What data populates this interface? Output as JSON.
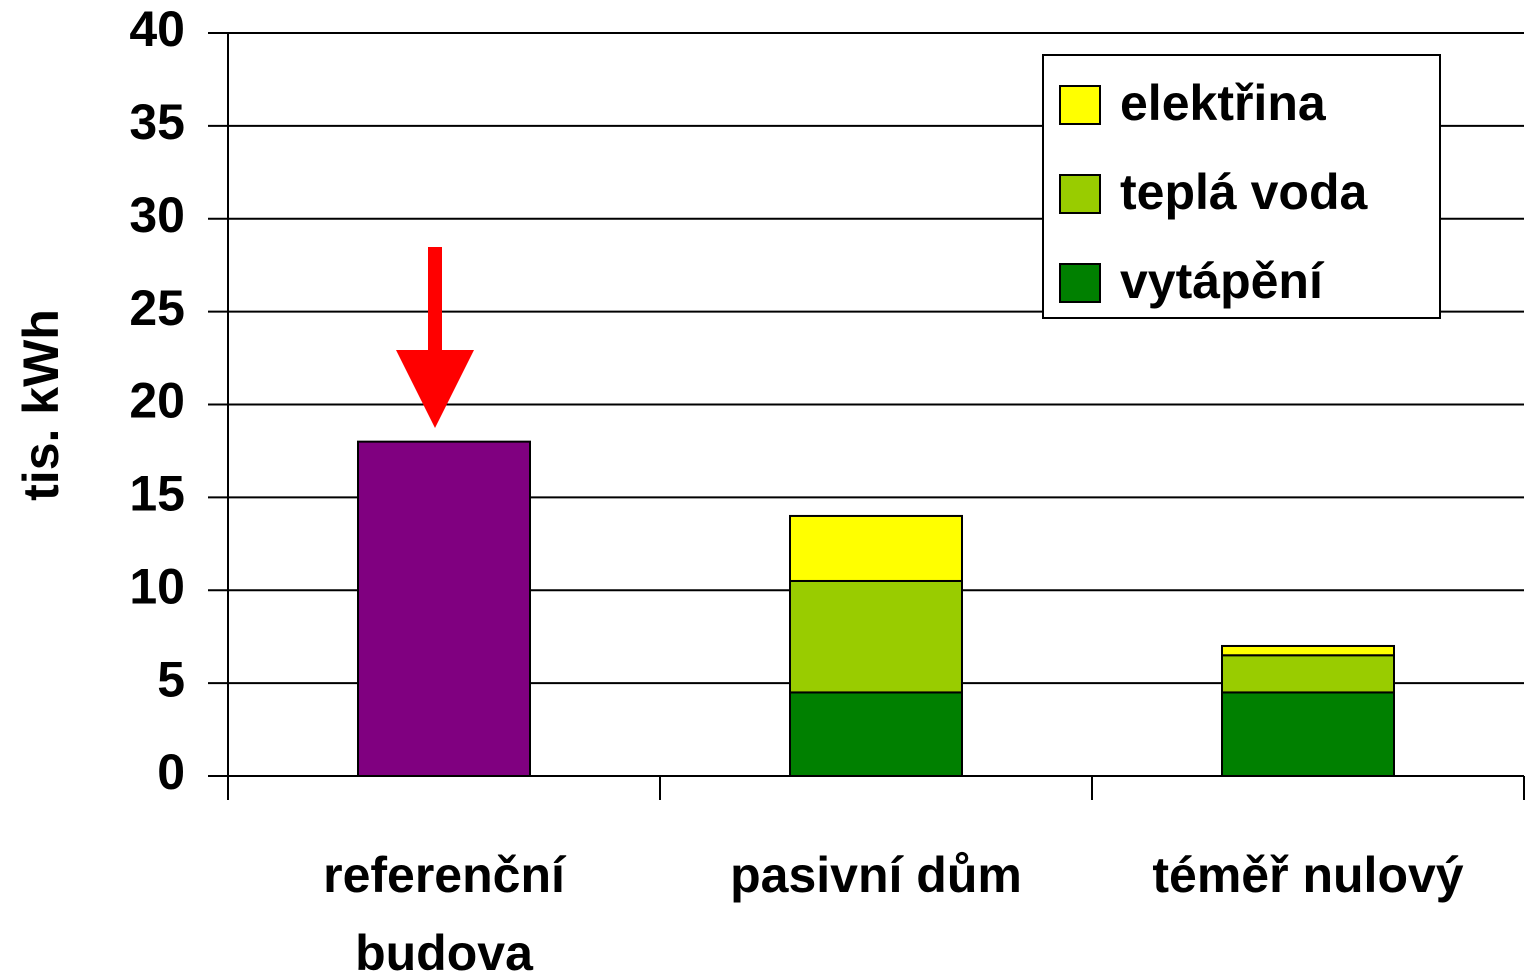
{
  "chart_data": {
    "type": "stacked_bar",
    "y_label": "tis. kWh",
    "categories": [
      "referenční budova",
      "pasivní dům",
      "téměř nulový"
    ],
    "series": [
      {
        "color": "#800080",
        "values": [
          18,
          null,
          null
        ]
      },
      {
        "name": "vytápění",
        "color": "#008000",
        "values": [
          null,
          4.5,
          4.5
        ]
      },
      {
        "name": "teplá voda",
        "color": "#99cc00",
        "values": [
          null,
          6,
          2
        ]
      },
      {
        "name": "elektřina",
        "color": "#ffff00",
        "values": [
          null,
          3.5,
          0.5
        ]
      }
    ],
    "ylim": [
      0,
      40
    ],
    "yticks": [
      0,
      5,
      10,
      15,
      20,
      25,
      30,
      35,
      40
    ],
    "grid": true,
    "legend": "upper right"
  }
}
